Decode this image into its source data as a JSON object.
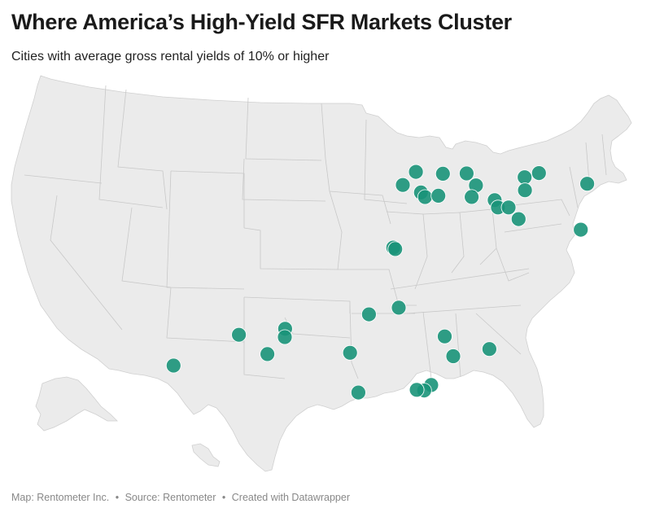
{
  "header": {
    "title": "Where America’s High-Yield SFR Markets Cluster",
    "subtitle": "Cities with average gross rental yields of 10% or higher"
  },
  "map": {
    "land_color": "#ebebeb",
    "border_color": "#c8c8c8",
    "marker_color": "#1a9479",
    "markers": [
      {
        "lat": 43.04,
        "lon": -87.91
      },
      {
        "lat": 42.27,
        "lon": -89.09
      },
      {
        "lat": 41.85,
        "lon": -87.65
      },
      {
        "lat": 41.59,
        "lon": -87.35
      },
      {
        "lat": 41.68,
        "lon": -86.25
      },
      {
        "lat": 42.96,
        "lon": -85.67
      },
      {
        "lat": 43.01,
        "lon": -83.69
      },
      {
        "lat": 42.33,
        "lon": -83.05
      },
      {
        "lat": 41.65,
        "lon": -83.54
      },
      {
        "lat": 41.5,
        "lon": -81.69
      },
      {
        "lat": 41.08,
        "lon": -81.52
      },
      {
        "lat": 41.1,
        "lon": -80.65
      },
      {
        "lat": 40.44,
        "lon": -80.0
      },
      {
        "lat": 42.89,
        "lon": -78.88
      },
      {
        "lat": 43.16,
        "lon": -77.61
      },
      {
        "lat": 42.65,
        "lon": -73.76
      },
      {
        "lat": 42.13,
        "lon": -79.06
      },
      {
        "lat": 39.95,
        "lon": -75.17
      },
      {
        "lat": 38.63,
        "lon": -90.2
      },
      {
        "lat": 38.55,
        "lon": -90.05
      },
      {
        "lat": 35.15,
        "lon": -90.05
      },
      {
        "lat": 34.75,
        "lon": -92.29
      },
      {
        "lat": 33.91,
        "lon": -98.49
      },
      {
        "lat": 33.58,
        "lon": -101.86
      },
      {
        "lat": 33.43,
        "lon": -98.5
      },
      {
        "lat": 32.45,
        "lon": -99.73
      },
      {
        "lat": 32.52,
        "lon": -93.75
      },
      {
        "lat": 33.52,
        "lon": -86.8
      },
      {
        "lat": 32.38,
        "lon": -86.3
      },
      {
        "lat": 32.84,
        "lon": -83.63
      },
      {
        "lat": 30.22,
        "lon": -93.22
      },
      {
        "lat": 30.69,
        "lon": -88.04
      },
      {
        "lat": 30.37,
        "lon": -88.56
      },
      {
        "lat": 30.4,
        "lon": -89.09
      },
      {
        "lat": 31.85,
        "lon": -106.44
      }
    ]
  },
  "footer": {
    "map_credit": "Map: Rentometer Inc.",
    "source": "Source: Rentometer",
    "created": "Created with Datawrapper",
    "separator": "•"
  }
}
